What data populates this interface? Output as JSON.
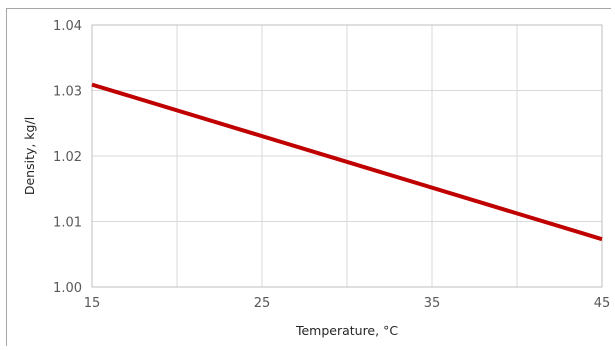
{
  "chart_data": {
    "type": "line",
    "title": "",
    "xlabel": "Temperature, °C",
    "ylabel": "Density, kg/l",
    "xlim": [
      15,
      45
    ],
    "ylim": [
      1.0,
      1.04
    ],
    "x_ticks": [
      "15",
      "25",
      "35",
      "45"
    ],
    "x_minor_grid": [
      15,
      20,
      25,
      30,
      35,
      40,
      45
    ],
    "y_ticks": [
      "1.00",
      "1.01",
      "1.02",
      "1.03",
      "1.04"
    ],
    "y_values_for_ticks": [
      1.0,
      1.01,
      1.02,
      1.03,
      1.04
    ],
    "grid": true,
    "legend": "none",
    "series": [
      {
        "x": [
          15,
          45
        ],
        "y": [
          1.0309,
          1.0073
        ],
        "color": "#c00000"
      }
    ]
  }
}
